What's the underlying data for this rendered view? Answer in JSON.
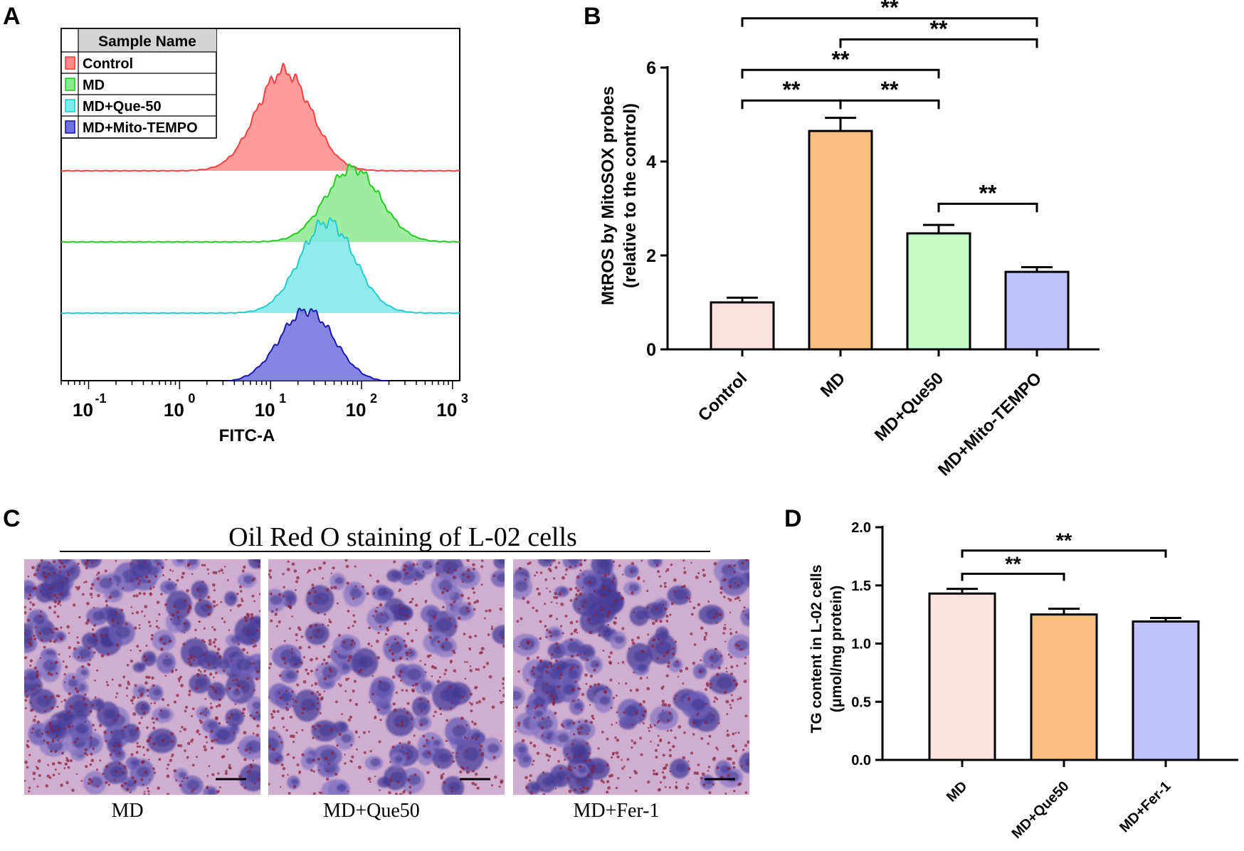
{
  "panel_labels": {
    "a": "A",
    "b": "B",
    "c": "C",
    "d": "D"
  },
  "chart_data": [
    {
      "type": "area",
      "title": "",
      "xlabel": "FITC-A",
      "xscale": "log",
      "xlim": [
        0.05,
        1200
      ],
      "x_ticks": [
        {
          "base": "10",
          "exp": "-1",
          "value": 0.1
        },
        {
          "base": "10",
          "exp": "0",
          "value": 1
        },
        {
          "base": "10",
          "exp": "1",
          "value": 10
        },
        {
          "base": "10",
          "exp": "2",
          "value": 100
        },
        {
          "base": "10",
          "exp": "3",
          "value": 1000
        }
      ],
      "legend_header": "Sample Name",
      "legend_position": "top-left",
      "series": [
        {
          "name": "Control",
          "color": "#ff4040",
          "fill": "#ff8a8a",
          "peak_x": 14,
          "relative_height": 1.0
        },
        {
          "name": "MD",
          "color": "#22cc22",
          "fill": "#8ee88e",
          "peak_x": 80,
          "relative_height": 0.74
        },
        {
          "name": "MD+Que-50",
          "color": "#22cccc",
          "fill": "#7ee8ea",
          "peak_x": 42,
          "relative_height": 0.92
        },
        {
          "name": "MD+Mito-TEMPO",
          "color": "#1a1aaa",
          "fill": "#7070dd",
          "peak_x": 25,
          "relative_height": 0.72
        }
      ]
    },
    {
      "type": "bar",
      "title": "",
      "xlabel": "",
      "ylabel_line1": "MtROS by MitoSOX probes",
      "ylabel_line2": "(relative to the control)",
      "ylim": [
        0,
        6
      ],
      "yticks": [
        0,
        2,
        4,
        6
      ],
      "categories": [
        "Control",
        "MD",
        "MD+Que50",
        "MD+Mito-TEMPO"
      ],
      "values": [
        1.0,
        4.65,
        2.47,
        1.65
      ],
      "errors": [
        0.1,
        0.28,
        0.18,
        0.1
      ],
      "colors": [
        "#fde0e0",
        "#fbbf80",
        "#c5fcc5",
        "#c1c1fc"
      ],
      "significance": [
        {
          "from": "Control",
          "to": "MD",
          "label": "**",
          "y": 5.3
        },
        {
          "from": "MD",
          "to": "MD+Que50",
          "label": "**",
          "y": 5.3
        },
        {
          "from": "Control",
          "to": "MD+Que50",
          "label": "**",
          "y": 5.95
        },
        {
          "from": "MD",
          "to": "MD+Mito-TEMPO",
          "label": "**",
          "y": 6.6
        },
        {
          "from": "Control",
          "to": "MD+Mito-TEMPO",
          "label": "**",
          "y": 7.05
        },
        {
          "from": "MD+Que50",
          "to": "MD+Mito-TEMPO",
          "label": "**",
          "y": 3.1
        }
      ]
    },
    {
      "type": "bar",
      "title": "",
      "xlabel": "",
      "ylabel_line1": "TG content in L-02 cells",
      "ylabel_line2": "(μmol/mg protein)",
      "ylim": [
        0,
        2.0
      ],
      "yticks": [
        "0.0",
        "0.5",
        "1.0",
        "1.5",
        "2.0"
      ],
      "categories": [
        "MD",
        "MD+Que50",
        "MD+Fer-1"
      ],
      "values": [
        1.43,
        1.25,
        1.19
      ],
      "errors": [
        0.04,
        0.05,
        0.03
      ],
      "colors": [
        "#fde0e0",
        "#fbbf80",
        "#c1c1fc"
      ],
      "significance": [
        {
          "from": "MD",
          "to": "MD+Que50",
          "label": "**",
          "y": 1.6
        },
        {
          "from": "MD",
          "to": "MD+Fer-1",
          "label": "**",
          "y": 1.8
        }
      ]
    }
  ],
  "panel_c": {
    "title": "Oil Red O staining of L-02 cells",
    "images": [
      {
        "caption": "MD",
        "density": 1.0
      },
      {
        "caption": "MD+Que50",
        "density": 0.75
      },
      {
        "caption": "MD+Fer-1",
        "density": 0.85
      }
    ]
  }
}
